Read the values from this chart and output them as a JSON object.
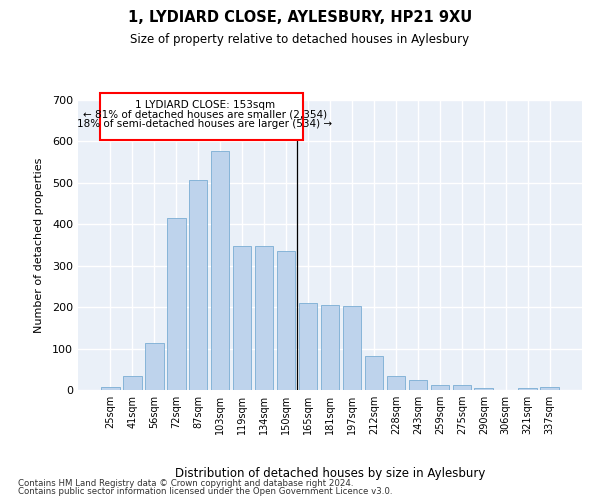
{
  "title1": "1, LYDIARD CLOSE, AYLESBURY, HP21 9XU",
  "title2": "Size of property relative to detached houses in Aylesbury",
  "xlabel": "Distribution of detached houses by size in Aylesbury",
  "ylabel": "Number of detached properties",
  "categories": [
    "25sqm",
    "41sqm",
    "56sqm",
    "72sqm",
    "87sqm",
    "103sqm",
    "119sqm",
    "134sqm",
    "150sqm",
    "165sqm",
    "181sqm",
    "197sqm",
    "212sqm",
    "228sqm",
    "243sqm",
    "259sqm",
    "275sqm",
    "290sqm",
    "306sqm",
    "321sqm",
    "337sqm"
  ],
  "values": [
    8,
    33,
    113,
    415,
    507,
    578,
    348,
    348,
    335,
    211,
    205,
    202,
    81,
    35,
    23,
    13,
    13,
    4,
    0,
    5,
    8
  ],
  "bar_color": "#bed3ec",
  "bar_edge_color": "#7aadd4",
  "bg_color": "#eaf0f8",
  "grid_color": "#ffffff",
  "annotation_text1": "1 LYDIARD CLOSE: 153sqm",
  "annotation_text2": "← 81% of detached houses are smaller (2,354)",
  "annotation_text3": "18% of semi-detached houses are larger (534) →",
  "footnote1": "Contains HM Land Registry data © Crown copyright and database right 2024.",
  "footnote2": "Contains public sector information licensed under the Open Government Licence v3.0.",
  "ylim": [
    0,
    700
  ],
  "yticks": [
    0,
    100,
    200,
    300,
    400,
    500,
    600,
    700
  ],
  "line_index": 8.5
}
